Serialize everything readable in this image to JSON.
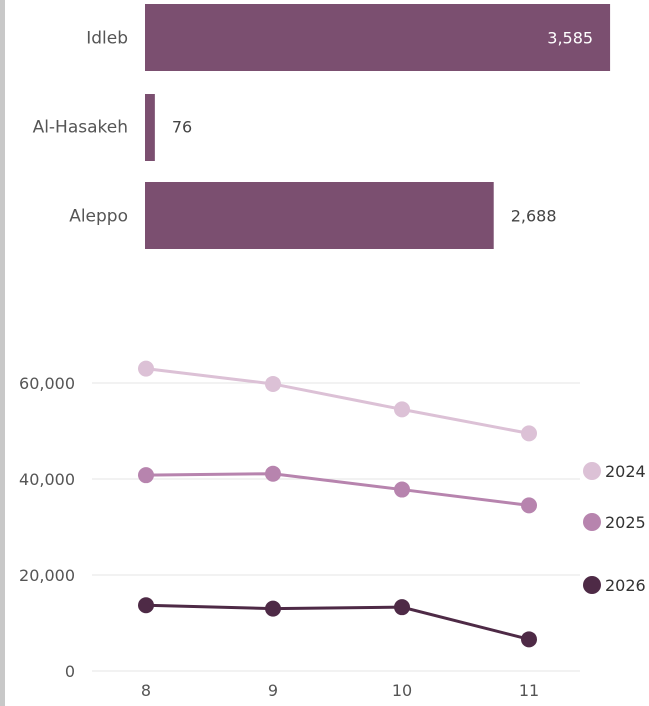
{
  "colors": {
    "bar": "#7b4f70",
    "series_2024": "#dcc1d6",
    "series_2025": "#b784ae",
    "series_2026": "#4e2a46",
    "grid": "#e6e6e6",
    "text": "#555555"
  },
  "chart_data": [
    {
      "type": "bar",
      "orientation": "horizontal",
      "categories": [
        "Idleb",
        "Al-Hasakeh",
        "Aleppo"
      ],
      "values": [
        3585,
        76,
        2688
      ],
      "value_labels": [
        "3,585",
        "76",
        "2,688"
      ],
      "xlim": [
        0,
        3700
      ]
    },
    {
      "type": "line",
      "x": [
        8,
        9,
        10,
        11
      ],
      "x_tick_labels": [
        "8",
        "9",
        "10",
        "11"
      ],
      "ylim": [
        0,
        70000
      ],
      "y_ticks": [
        0,
        20000,
        40000,
        60000
      ],
      "y_tick_labels": [
        "0",
        "20,000",
        "40,000",
        "60,000"
      ],
      "grid": true,
      "legend_position": "right",
      "series": [
        {
          "name": "2024",
          "color_key": "series_2024",
          "values": [
            63000,
            59800,
            54500,
            49500
          ]
        },
        {
          "name": "2025",
          "color_key": "series_2025",
          "values": [
            40800,
            41100,
            37800,
            34500
          ]
        },
        {
          "name": "2026",
          "color_key": "series_2026",
          "values": [
            13700,
            13000,
            13300,
            6600
          ]
        }
      ]
    }
  ]
}
